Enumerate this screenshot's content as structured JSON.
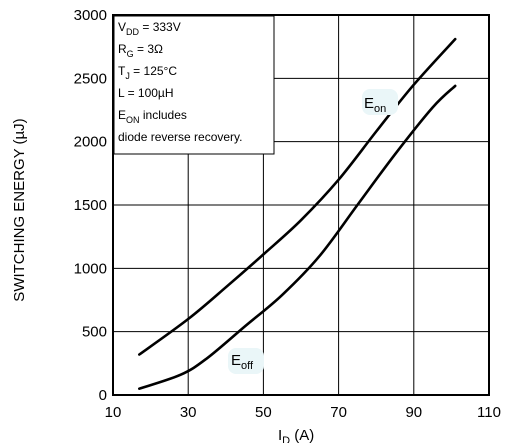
{
  "chart_data": {
    "type": "line",
    "title": "",
    "ylabel": "SWITCHING ENERGY (µJ)",
    "xlabel_main": "I",
    "xlabel_sub": "D",
    "xlabel_unit": " (A)",
    "xlim": [
      10,
      110
    ],
    "ylim": [
      0,
      3000
    ],
    "x_ticks": [
      10,
      30,
      50,
      70,
      90,
      110
    ],
    "y_ticks": [
      0,
      500,
      1000,
      1500,
      2000,
      2500,
      3000
    ],
    "grid": true,
    "conditions": [
      {
        "main": "V",
        "sub": "DD",
        "rest": " = 333V"
      },
      {
        "main": "R",
        "sub": "G",
        "rest": " = 3Ω"
      },
      {
        "main": "T",
        "sub": "J",
        "rest": " = 125°C"
      },
      {
        "main": "L = 100µH",
        "sub": "",
        "rest": ""
      },
      {
        "main": "E",
        "sub": "ON",
        "rest": " includes"
      },
      {
        "main": "diode reverse recovery.",
        "sub": "",
        "rest": ""
      }
    ],
    "series": [
      {
        "label_main": "E",
        "label_sub": "on",
        "x": [
          17,
          30,
          40,
          50,
          60,
          70,
          80,
          90,
          101
        ],
        "y": [
          320,
          600,
          850,
          1110,
          1380,
          1700,
          2080,
          2450,
          2810
        ]
      },
      {
        "label_main": "E",
        "label_sub": "off",
        "x": [
          17,
          28,
          35,
          45,
          55,
          65,
          75,
          85,
          95,
          101
        ],
        "y": [
          50,
          160,
          290,
          540,
          790,
          1100,
          1500,
          1900,
          2270,
          2440
        ]
      }
    ]
  }
}
